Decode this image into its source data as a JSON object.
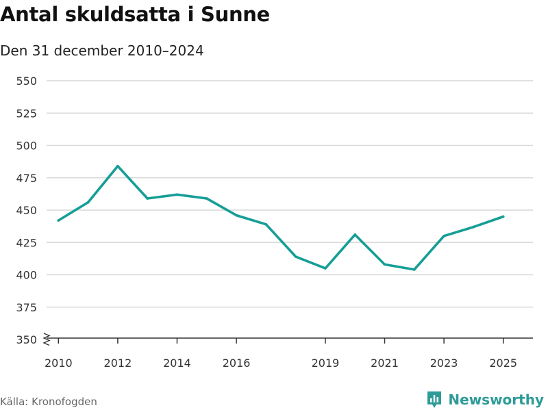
{
  "header": {
    "title": "Antal skuldsatta i Sunne",
    "subtitle": "Den 31 december 2010–2024"
  },
  "footer": {
    "source": "Källa: Kronofogden",
    "brand": "Newsworthy"
  },
  "colors": {
    "line": "#159e96",
    "grid": "#d9d9d9",
    "axis": "#333333",
    "brand": "#2e9b98"
  },
  "icons": {
    "brand_logo": "newsworthy-logo-icon",
    "axis_break": "zigzag-axis-break-icon"
  },
  "chart_data": {
    "type": "line",
    "title": "Antal skuldsatta i Sunne",
    "subtitle": "Den 31 december 2010–2024",
    "x": [
      2010,
      2011,
      2012,
      2013,
      2014,
      2015,
      2016,
      2017,
      2018,
      2019,
      2020,
      2021,
      2022,
      2023,
      2024,
      2025
    ],
    "xlim": [
      2009.6,
      2026.0
    ],
    "xticks": [
      2010,
      2012,
      2014,
      2016,
      2019,
      2021,
      2023,
      2025
    ],
    "ylim": [
      350,
      550
    ],
    "yticks": [
      350,
      375,
      400,
      425,
      450,
      475,
      500,
      525,
      550
    ],
    "axis_break": true,
    "grid": true,
    "series": [
      {
        "values": [
          442,
          456,
          484,
          459,
          462,
          459,
          446,
          439,
          414,
          405,
          431,
          408,
          404,
          430,
          437,
          445
        ]
      }
    ]
  }
}
